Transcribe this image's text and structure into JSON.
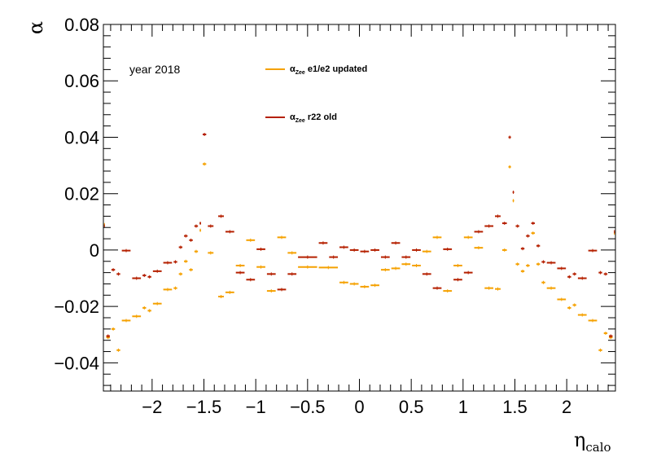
{
  "chart_data": {
    "type": "scatter",
    "title": "",
    "annotation": "year 2018",
    "xlabel": {
      "main": "η",
      "sub": "calo"
    },
    "ylabel": "α",
    "xlim": [
      -2.47,
      2.47
    ],
    "ylim": [
      -0.05,
      0.08
    ],
    "x_ticks": [
      -2,
      -1.5,
      -1,
      -0.5,
      0,
      0.5,
      1,
      1.5,
      2
    ],
    "x_tick_labels": [
      "−2",
      "−1.5",
      "−1",
      "−0.5",
      "0",
      "0.5",
      "1",
      "1.5",
      "2"
    ],
    "y_ticks": [
      -0.04,
      -0.02,
      0,
      0.02,
      0.04,
      0.06,
      0.08
    ],
    "y_tick_labels": [
      "−0.04",
      "−0.02",
      "0",
      "0.02",
      "0.04",
      "0.06",
      "0.08"
    ],
    "grid": false,
    "legend_position": "top-center",
    "series": [
      {
        "name_main": "α",
        "name_sub": "Zee",
        "name_rest": " e1/e2 updated",
        "color": "#f5a100",
        "points": [
          {
            "x0": -2.47,
            "x1": -2.45,
            "y": 0.009
          },
          {
            "x0": -2.45,
            "x1": -2.4,
            "y": -0.031
          },
          {
            "x0": -2.4,
            "x1": -2.35,
            "y": -0.028
          },
          {
            "x0": -2.35,
            "x1": -2.3,
            "y": -0.0355
          },
          {
            "x0": -2.3,
            "x1": -2.2,
            "y": -0.025
          },
          {
            "x0": -2.2,
            "x1": -2.1,
            "y": -0.0235
          },
          {
            "x0": -2.1,
            "x1": -2.05,
            "y": -0.0205
          },
          {
            "x0": -2.05,
            "x1": -2.0,
            "y": -0.0215
          },
          {
            "x0": -2.0,
            "x1": -1.9,
            "y": -0.019
          },
          {
            "x0": -1.9,
            "x1": -1.8,
            "y": -0.014
          },
          {
            "x0": -1.8,
            "x1": -1.75,
            "y": -0.0135
          },
          {
            "x0": -1.75,
            "x1": -1.7,
            "y": -0.0085
          },
          {
            "x0": -1.7,
            "x1": -1.65,
            "y": -0.004
          },
          {
            "x0": -1.65,
            "x1": -1.6,
            "y": -0.007
          },
          {
            "x0": -1.6,
            "x1": -1.55,
            "y": -0.0005
          },
          {
            "x0": -1.55,
            "x1": -1.52,
            "y": 0.007
          },
          {
            "x0": -1.52,
            "x1": -1.47,
            "y": 0.0305
          },
          {
            "x0": -1.47,
            "x1": -1.4,
            "y": -0.001
          },
          {
            "x0": -1.37,
            "x1": -1.3,
            "y": -0.0165
          },
          {
            "x0": -1.3,
            "x1": -1.2,
            "y": -0.015
          },
          {
            "x0": -1.2,
            "x1": -1.1,
            "y": -0.0055
          },
          {
            "x0": -1.1,
            "x1": -1.0,
            "y": 0.0035
          },
          {
            "x0": -1.0,
            "x1": -0.9,
            "y": -0.006
          },
          {
            "x0": -0.9,
            "x1": -0.8,
            "y": -0.0145
          },
          {
            "x0": -0.8,
            "x1": -0.7,
            "y": 0.0045
          },
          {
            "x0": -0.7,
            "x1": -0.6,
            "y": -0.001
          },
          {
            "x0": -0.6,
            "x1": -0.4,
            "y": -0.006
          },
          {
            "x0": -0.4,
            "x1": -0.2,
            "y": -0.0062
          },
          {
            "x0": -0.2,
            "x1": -0.1,
            "y": -0.0115
          },
          {
            "x0": -0.1,
            "x1": 0.0,
            "y": -0.012
          },
          {
            "x0": 0.0,
            "x1": 0.1,
            "y": -0.013
          },
          {
            "x0": 0.1,
            "x1": 0.2,
            "y": -0.0125
          },
          {
            "x0": 0.2,
            "x1": 0.3,
            "y": -0.007
          },
          {
            "x0": 0.3,
            "x1": 0.4,
            "y": -0.0065
          },
          {
            "x0": 0.4,
            "x1": 0.5,
            "y": -0.005
          },
          {
            "x0": 0.5,
            "x1": 0.6,
            "y": -0.0055
          },
          {
            "x0": 0.6,
            "x1": 0.7,
            "y": -0.0005
          },
          {
            "x0": 0.7,
            "x1": 0.8,
            "y": 0.0045
          },
          {
            "x0": 0.8,
            "x1": 0.9,
            "y": -0.0145
          },
          {
            "x0": 0.9,
            "x1": 1.0,
            "y": -0.0055
          },
          {
            "x0": 1.0,
            "x1": 1.1,
            "y": 0.0045
          },
          {
            "x0": 1.1,
            "x1": 1.2,
            "y": 0.0008
          },
          {
            "x0": 1.2,
            "x1": 1.3,
            "y": -0.0135
          },
          {
            "x0": 1.3,
            "x1": 1.37,
            "y": -0.0138
          },
          {
            "x0": 1.37,
            "x1": 1.43,
            "y": 0.0
          },
          {
            "x0": 1.43,
            "x1": 1.47,
            "y": 0.0295
          },
          {
            "x0": 1.47,
            "x1": 1.5,
            "y": 0.0175
          },
          {
            "x0": 1.5,
            "x1": 1.55,
            "y": -0.005
          },
          {
            "x0": 1.55,
            "x1": 1.6,
            "y": -0.0075
          },
          {
            "x0": 1.6,
            "x1": 1.65,
            "y": -0.0055
          },
          {
            "x0": 1.65,
            "x1": 1.7,
            "y": 0.006
          },
          {
            "x0": 1.7,
            "x1": 1.75,
            "y": -0.005
          },
          {
            "x0": 1.75,
            "x1": 1.8,
            "y": -0.0115
          },
          {
            "x0": 1.8,
            "x1": 1.9,
            "y": -0.0135
          },
          {
            "x0": 1.9,
            "x1": 2.0,
            "y": -0.0175
          },
          {
            "x0": 2.0,
            "x1": 2.05,
            "y": -0.0205
          },
          {
            "x0": 2.05,
            "x1": 2.1,
            "y": -0.0195
          },
          {
            "x0": 2.1,
            "x1": 2.2,
            "y": -0.023
          },
          {
            "x0": 2.2,
            "x1": 2.3,
            "y": -0.025
          },
          {
            "x0": 2.3,
            "x1": 2.35,
            "y": -0.0355
          },
          {
            "x0": 2.35,
            "x1": 2.4,
            "y": -0.0295
          },
          {
            "x0": 2.4,
            "x1": 2.45,
            "y": -0.031
          },
          {
            "x0": 2.45,
            "x1": 2.47,
            "y": 0.006
          }
        ]
      },
      {
        "name_main": "α",
        "name_sub": "Zee",
        "name_rest": " r22 old",
        "color": "#b52000",
        "points": [
          {
            "x0": -2.47,
            "x1": -2.45,
            "y": 0.0085
          },
          {
            "x0": -2.45,
            "x1": -2.4,
            "y": -0.0305
          },
          {
            "x0": -2.4,
            "x1": -2.35,
            "y": -0.007
          },
          {
            "x0": -2.35,
            "x1": -2.3,
            "y": -0.0085
          },
          {
            "x0": -2.3,
            "x1": -2.2,
            "y": -0.0002
          },
          {
            "x0": -2.2,
            "x1": -2.1,
            "y": -0.01
          },
          {
            "x0": -2.1,
            "x1": -2.05,
            "y": -0.009
          },
          {
            "x0": -2.05,
            "x1": -2.0,
            "y": -0.0095
          },
          {
            "x0": -2.0,
            "x1": -1.9,
            "y": -0.0075
          },
          {
            "x0": -1.9,
            "x1": -1.8,
            "y": -0.0045
          },
          {
            "x0": -1.8,
            "x1": -1.75,
            "y": -0.0042
          },
          {
            "x0": -1.75,
            "x1": -1.7,
            "y": 0.001
          },
          {
            "x0": -1.7,
            "x1": -1.65,
            "y": 0.005
          },
          {
            "x0": -1.65,
            "x1": -1.6,
            "y": 0.0035
          },
          {
            "x0": -1.6,
            "x1": -1.55,
            "y": 0.0085
          },
          {
            "x0": -1.55,
            "x1": -1.52,
            "y": 0.0095
          },
          {
            "x0": -1.52,
            "x1": -1.47,
            "y": 0.041
          },
          {
            "x0": -1.47,
            "x1": -1.4,
            "y": 0.0085
          },
          {
            "x0": -1.37,
            "x1": -1.3,
            "y": 0.012
          },
          {
            "x0": -1.3,
            "x1": -1.2,
            "y": 0.0065
          },
          {
            "x0": -1.2,
            "x1": -1.1,
            "y": -0.008
          },
          {
            "x0": -1.1,
            "x1": -1.0,
            "y": -0.0105
          },
          {
            "x0": -1.0,
            "x1": -0.9,
            "y": 0.0003
          },
          {
            "x0": -0.9,
            "x1": -0.8,
            "y": -0.0085
          },
          {
            "x0": -0.8,
            "x1": -0.7,
            "y": -0.014
          },
          {
            "x0": -0.7,
            "x1": -0.6,
            "y": -0.0085
          },
          {
            "x0": -0.6,
            "x1": -0.4,
            "y": -0.0025
          },
          {
            "x0": -0.4,
            "x1": -0.3,
            "y": 0.0025
          },
          {
            "x0": -0.3,
            "x1": -0.2,
            "y": -0.0025
          },
          {
            "x0": -0.2,
            "x1": -0.1,
            "y": 0.001
          },
          {
            "x0": -0.1,
            "x1": 0.0,
            "y": 0.0
          },
          {
            "x0": 0.0,
            "x1": 0.1,
            "y": -0.0005
          },
          {
            "x0": 0.1,
            "x1": 0.2,
            "y": 0.0
          },
          {
            "x0": 0.2,
            "x1": 0.3,
            "y": -0.0025
          },
          {
            "x0": 0.3,
            "x1": 0.4,
            "y": 0.0025
          },
          {
            "x0": 0.4,
            "x1": 0.5,
            "y": -0.0025
          },
          {
            "x0": 0.5,
            "x1": 0.6,
            "y": 0.0
          },
          {
            "x0": 0.6,
            "x1": 0.7,
            "y": -0.0085
          },
          {
            "x0": 0.7,
            "x1": 0.8,
            "y": -0.0135
          },
          {
            "x0": 0.8,
            "x1": 0.9,
            "y": 0.0003
          },
          {
            "x0": 0.9,
            "x1": 1.0,
            "y": -0.0105
          },
          {
            "x0": 1.0,
            "x1": 1.1,
            "y": -0.008
          },
          {
            "x0": 1.1,
            "x1": 1.2,
            "y": 0.0065
          },
          {
            "x0": 1.2,
            "x1": 1.3,
            "y": 0.0085
          },
          {
            "x0": 1.3,
            "x1": 1.37,
            "y": 0.012
          },
          {
            "x0": 1.37,
            "x1": 1.43,
            "y": 0.0095
          },
          {
            "x0": 1.43,
            "x1": 1.47,
            "y": 0.04
          },
          {
            "x0": 1.47,
            "x1": 1.5,
            "y": 0.0205
          },
          {
            "x0": 1.5,
            "x1": 1.55,
            "y": 0.0085
          },
          {
            "x0": 1.55,
            "x1": 1.6,
            "y": 0.0005
          },
          {
            "x0": 1.6,
            "x1": 1.65,
            "y": 0.005
          },
          {
            "x0": 1.65,
            "x1": 1.7,
            "y": 0.0095
          },
          {
            "x0": 1.7,
            "x1": 1.75,
            "y": 0.0015
          },
          {
            "x0": 1.75,
            "x1": 1.8,
            "y": -0.0042
          },
          {
            "x0": 1.8,
            "x1": 1.9,
            "y": -0.0045
          },
          {
            "x0": 1.9,
            "x1": 2.0,
            "y": -0.0065
          },
          {
            "x0": 2.0,
            "x1": 2.05,
            "y": -0.0095
          },
          {
            "x0": 2.05,
            "x1": 2.1,
            "y": -0.0085
          },
          {
            "x0": 2.1,
            "x1": 2.2,
            "y": -0.01
          },
          {
            "x0": 2.2,
            "x1": 2.3,
            "y": -0.0002
          },
          {
            "x0": 2.3,
            "x1": 2.35,
            "y": -0.008
          },
          {
            "x0": 2.35,
            "x1": 2.4,
            "y": -0.0085
          },
          {
            "x0": 2.4,
            "x1": 2.45,
            "y": -0.0305
          },
          {
            "x0": 2.45,
            "x1": 2.47,
            "y": 0.0065
          }
        ]
      }
    ]
  }
}
